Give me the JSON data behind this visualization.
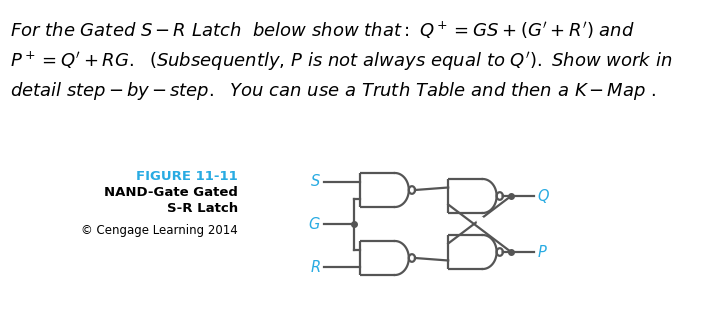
{
  "bg_color": "#ffffff",
  "cyan_color": "#29ABE2",
  "dark_gray": "#555555",
  "title_line1": "FIGURE 11-11",
  "title_line2": "NAND-Gate Gated",
  "title_line3": "S-R Latch",
  "copyright": "© Cengage Learning 2014",
  "figsize": [
    7.04,
    3.12
  ],
  "dpi": 100,
  "text_fs": 13.0,
  "cap_fs": 9.5,
  "copy_fs": 8.5,
  "io_fs": 10.5
}
